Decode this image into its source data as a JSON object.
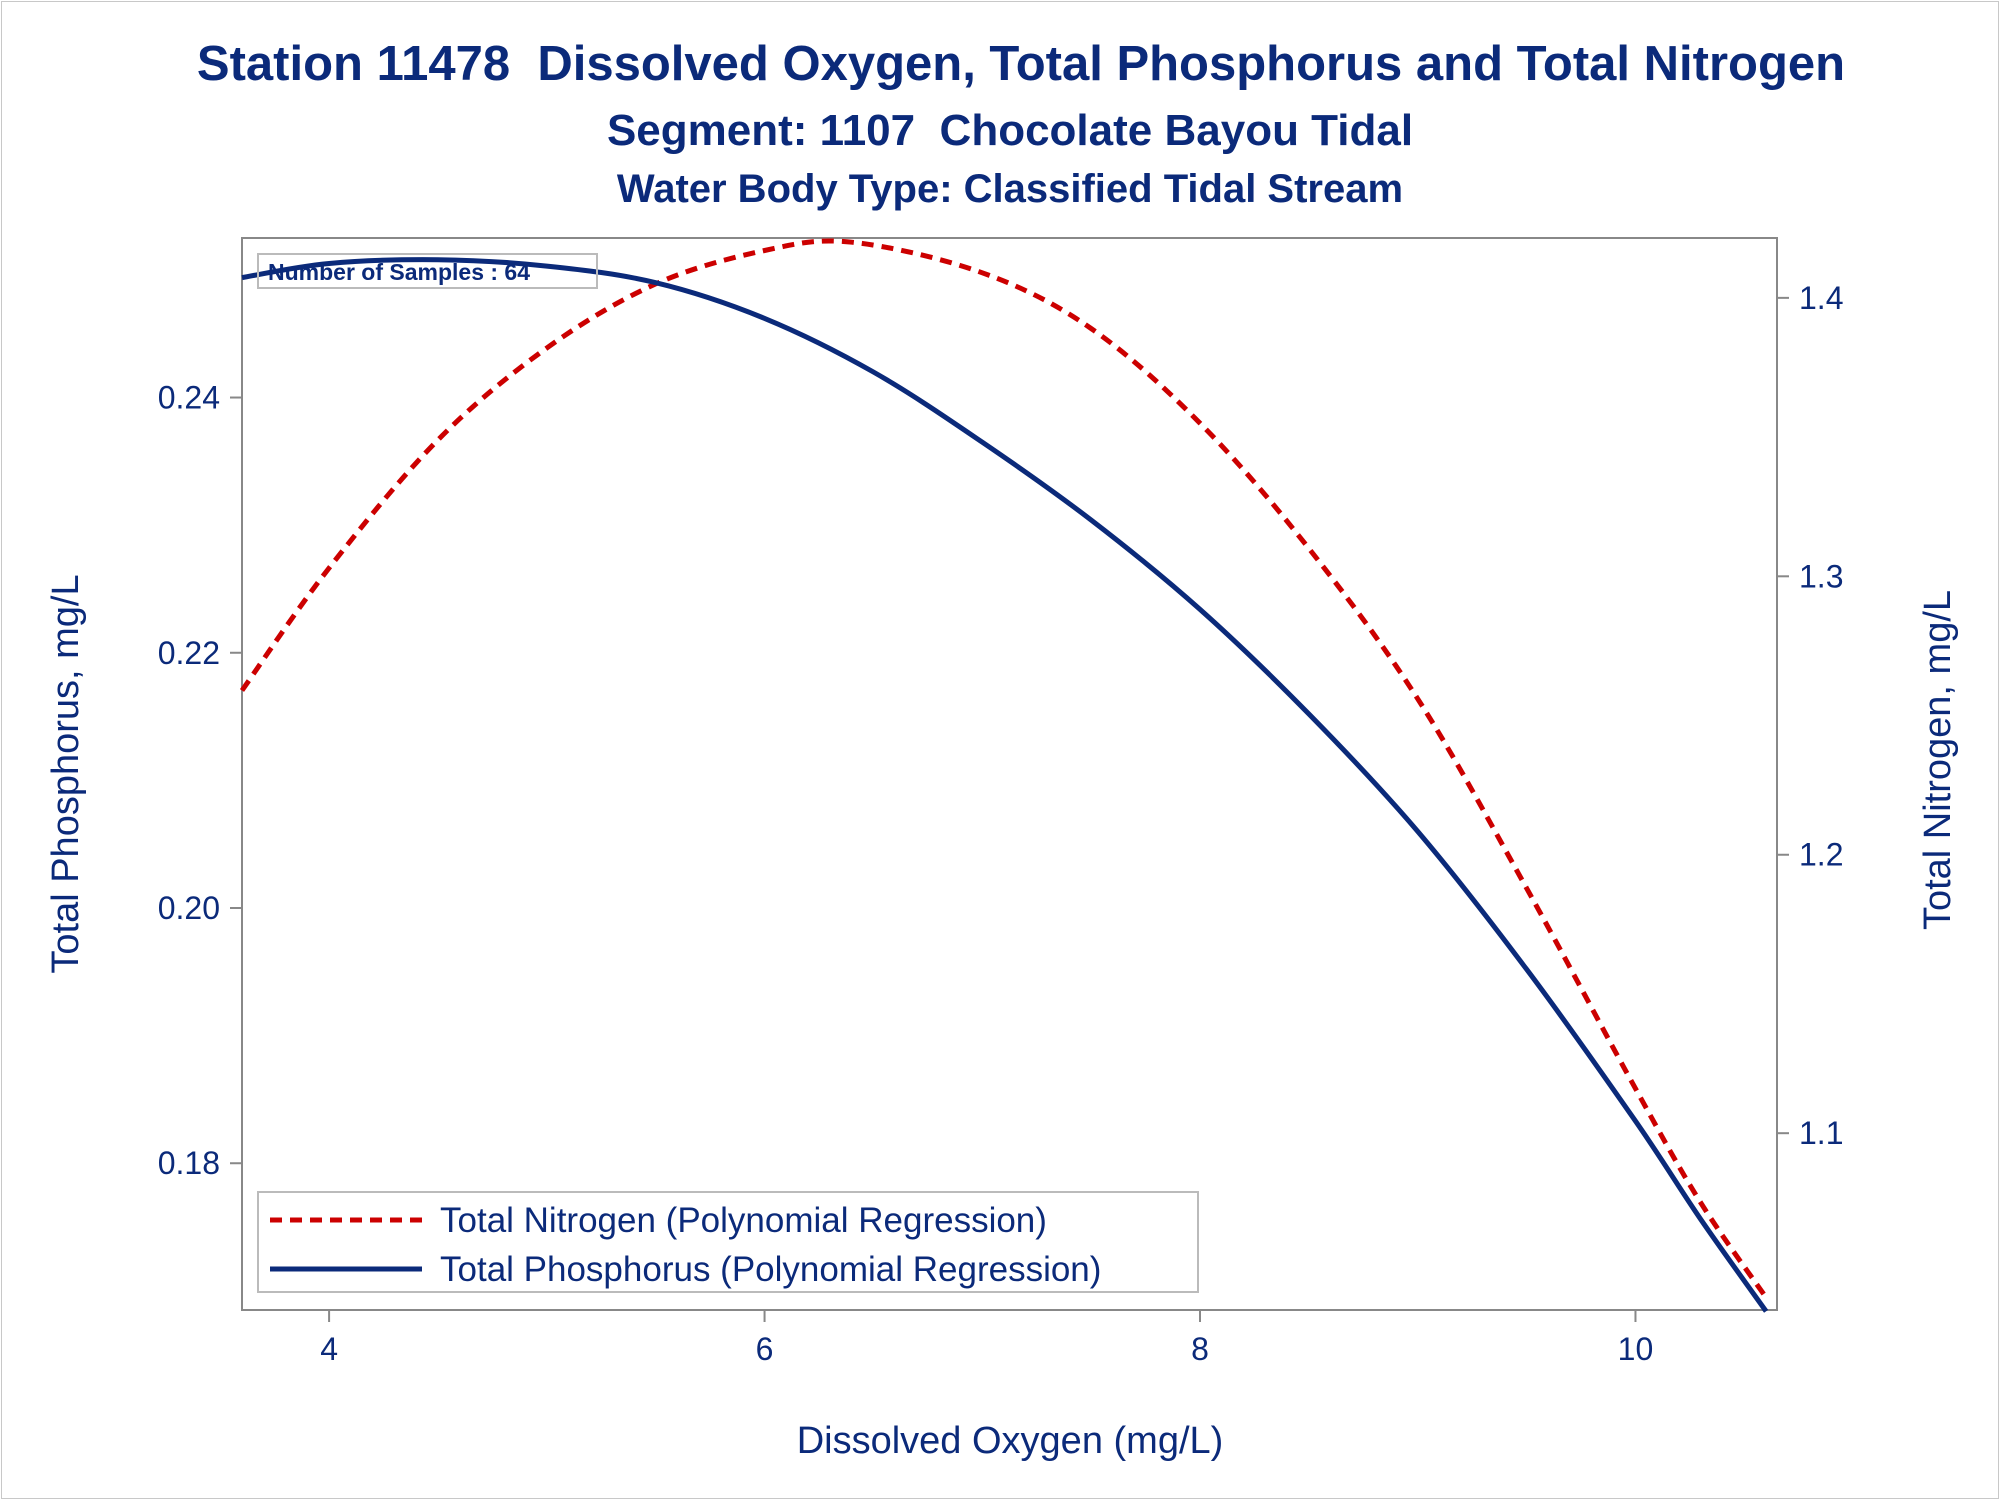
{
  "titles": {
    "line1": "Station 11478  Dissolved Oxygen, Total Phosphorus and Total Nitrogen",
    "line2": "Segment: 1107  Chocolate Bayou Tidal",
    "line3": "Water Body Type: Classified Tidal Stream"
  },
  "colors": {
    "text": "#0b2a7a",
    "nitrogen": "#cc0000",
    "phosphorus": "#0b2a7a",
    "axis": "#888888"
  },
  "chart_data": {
    "type": "line",
    "xlabel": "Dissolved Oxygen (mg/L)",
    "ylabel": "Total Phosphorus, mg/L",
    "y2label": "Total Nitrogen, mg/L",
    "xlim": [
      3.6,
      10.65
    ],
    "ylim": [
      0.1685,
      0.2525
    ],
    "y2lim": [
      1.0365,
      1.4215
    ],
    "x_ticks": [
      4,
      6,
      8,
      10
    ],
    "x_tick_labels": [
      "4",
      "6",
      "8",
      "10"
    ],
    "y_ticks": [
      0.18,
      0.2,
      0.22,
      0.24
    ],
    "y_tick_labels": [
      "0.18",
      "0.20",
      "0.22",
      "0.24"
    ],
    "y2_ticks": [
      1.1,
      1.2,
      1.3,
      1.4
    ],
    "y2_tick_labels": [
      "1.1",
      "1.2",
      "1.3",
      "1.4"
    ],
    "annotation": "Number of Samples : 64",
    "legend_position": "bottom-left",
    "series": [
      {
        "name": "Total Nitrogen (Polynomial Regression)",
        "axis": "right",
        "style": "dashed",
        "x": [
          3.6,
          4.0,
          4.5,
          5.0,
          5.5,
          6.0,
          6.4,
          7.0,
          7.5,
          8.0,
          8.5,
          9.0,
          9.5,
          10.0,
          10.3,
          10.6
        ],
        "y": [
          1.259,
          1.303,
          1.349,
          1.382,
          1.405,
          1.417,
          1.42,
          1.409,
          1.389,
          1.355,
          1.31,
          1.256,
          1.188,
          1.116,
          1.075,
          1.041
        ]
      },
      {
        "name": "Total Phosphorus (Polynomial Regression)",
        "axis": "left",
        "style": "solid",
        "x": [
          3.6,
          4.0,
          4.5,
          5.0,
          5.5,
          6.0,
          6.5,
          7.0,
          7.5,
          8.0,
          8.5,
          9.0,
          9.5,
          10.0,
          10.3,
          10.6
        ],
        "y": [
          0.2494,
          0.2505,
          0.2508,
          0.2503,
          0.249,
          0.2462,
          0.242,
          0.2365,
          0.2304,
          0.2234,
          0.2152,
          0.206,
          0.1952,
          0.1833,
          0.1756,
          0.1684
        ]
      }
    ]
  }
}
